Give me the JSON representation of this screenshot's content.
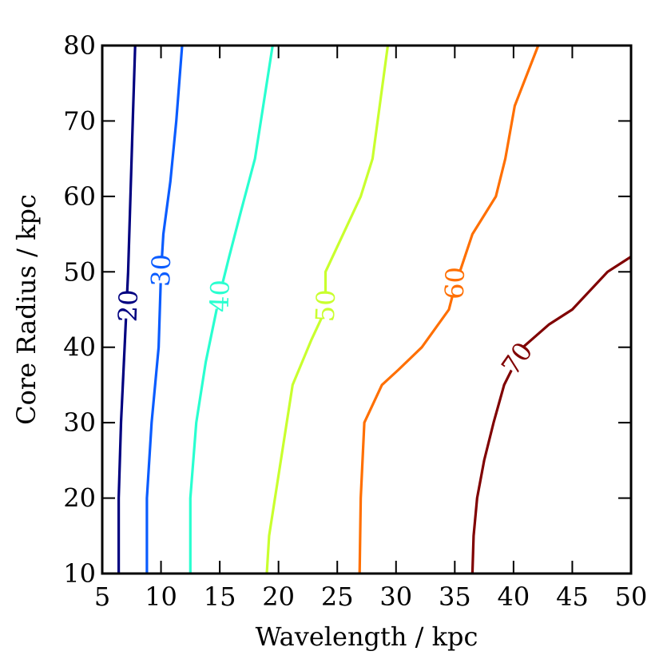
{
  "chart_data": {
    "type": "contour",
    "title": "",
    "xlabel": "Wavelength / kpc",
    "ylabel": "Core Radius / kpc",
    "xlim": [
      5,
      50
    ],
    "ylim": [
      10,
      80
    ],
    "xticks": [
      "5",
      "10",
      "15",
      "20",
      "25",
      "30",
      "35",
      "40",
      "45",
      "50"
    ],
    "yticks": [
      "10",
      "20",
      "30",
      "40",
      "50",
      "60",
      "70",
      "80"
    ],
    "grid": false,
    "contours": [
      {
        "level": "20",
        "color": "#000080",
        "label_at": [
          7.2,
          45.5
        ],
        "points": [
          [
            6.4,
            10
          ],
          [
            6.4,
            20
          ],
          [
            6.6,
            30
          ],
          [
            6.9,
            40
          ],
          [
            7.2,
            50
          ],
          [
            7.4,
            60
          ],
          [
            7.6,
            70
          ],
          [
            7.8,
            80
          ]
        ]
      },
      {
        "level": "30",
        "color": "#0a5cff",
        "label_at": [
          10.0,
          50.2
        ],
        "points": [
          [
            8.8,
            10
          ],
          [
            8.8,
            20
          ],
          [
            9.2,
            30
          ],
          [
            9.8,
            40
          ],
          [
            10.0,
            50
          ],
          [
            10.2,
            55
          ],
          [
            10.8,
            62
          ],
          [
            11.3,
            70
          ],
          [
            11.8,
            80
          ]
        ]
      },
      {
        "level": "40",
        "color": "#29ffd0",
        "label_at": [
          15.0,
          46.8
        ],
        "points": [
          [
            12.5,
            10
          ],
          [
            12.5,
            20
          ],
          [
            13.0,
            30
          ],
          [
            13.8,
            38
          ],
          [
            15.0,
            47
          ],
          [
            15.8,
            52
          ],
          [
            16.8,
            58
          ],
          [
            18.0,
            65
          ],
          [
            18.5,
            70
          ],
          [
            19.5,
            80
          ]
        ]
      },
      {
        "level": "50",
        "color": "#c9ff2e",
        "label_at": [
          24.0,
          45.5
        ],
        "points": [
          [
            19.0,
            10
          ],
          [
            19.2,
            15
          ],
          [
            20.2,
            25
          ],
          [
            21.2,
            35
          ],
          [
            22.8,
            41
          ],
          [
            24.0,
            45
          ],
          [
            24.0,
            50
          ],
          [
            25.5,
            55
          ],
          [
            27.0,
            60
          ],
          [
            28.0,
            65
          ],
          [
            29.3,
            80
          ]
        ]
      },
      {
        "level": "60",
        "color": "#ff6f00",
        "label_at": [
          35.0,
          48.5
        ],
        "points": [
          [
            26.9,
            10
          ],
          [
            27.0,
            20
          ],
          [
            27.3,
            30
          ],
          [
            28.8,
            35
          ],
          [
            30.2,
            37
          ],
          [
            32.2,
            40
          ],
          [
            34.5,
            45
          ],
          [
            35.0,
            48
          ],
          [
            36.5,
            55
          ],
          [
            38.5,
            60
          ],
          [
            39.3,
            65
          ],
          [
            40.1,
            72
          ],
          [
            42.1,
            80
          ]
        ]
      },
      {
        "level": "70",
        "color": "#800000",
        "label_at": [
          40.3,
          38.5
        ],
        "points": [
          [
            36.5,
            10
          ],
          [
            36.6,
            15
          ],
          [
            36.9,
            20
          ],
          [
            37.5,
            25
          ],
          [
            38.3,
            30
          ],
          [
            39.2,
            35
          ],
          [
            40.8,
            40
          ],
          [
            43.0,
            43
          ],
          [
            45.0,
            45
          ],
          [
            48.0,
            50
          ],
          [
            50.0,
            52
          ]
        ]
      }
    ]
  }
}
